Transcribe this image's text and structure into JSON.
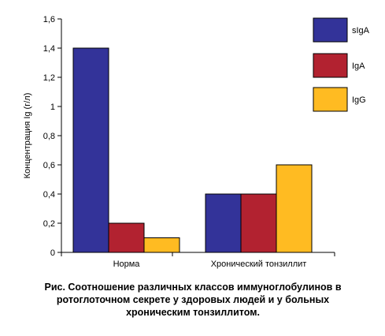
{
  "chart_data": {
    "type": "bar",
    "categories": [
      "Норма",
      "Хронический тонзиллит"
    ],
    "series": [
      {
        "name": "sIgA",
        "values": [
          1.4,
          0.4
        ],
        "color": "#333399"
      },
      {
        "name": "IgA",
        "values": [
          0.2,
          0.4
        ],
        "color": "#b22230"
      },
      {
        "name": "IgG",
        "values": [
          0.1,
          0.6
        ],
        "color": "#ffbb22"
      }
    ],
    "ylabel": "Концентрация Ig (г/л)",
    "ylim": [
      0,
      1.6
    ],
    "yticks": [
      "0",
      "0,2",
      "0,4",
      "0,6",
      "0,8",
      "1",
      "1,2",
      "1,4",
      "1,6"
    ],
    "grid": false,
    "legend_position": "top-right"
  },
  "caption": {
    "line1": "Рис. Соотношение различных классов иммуноглобулинов  в",
    "line2": "ротоглоточном секрете у здоровых людей и у больных",
    "line3": "хроническим тонзиллитом."
  }
}
